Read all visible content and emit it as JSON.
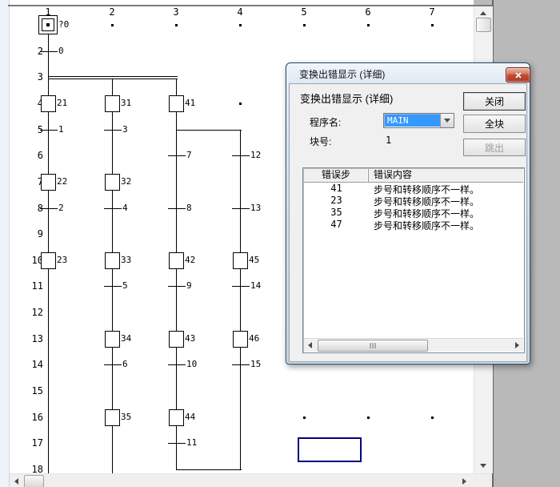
{
  "colors": {
    "cursor_outline": "#000080",
    "combo_selection": "#3399ff",
    "close_button_red": "#c0452f",
    "app_background": "#b9b9b9"
  },
  "editor": {
    "column_headers": [
      "1",
      "2",
      "3",
      "4",
      "5",
      "6",
      "7"
    ],
    "row_headers": [
      "1",
      "2",
      "3",
      "4",
      "5",
      "6",
      "7",
      "8",
      "9",
      "10",
      "11",
      "12",
      "13",
      "14",
      "15",
      "16",
      "17",
      "18"
    ],
    "initial_step": {
      "label": "?0",
      "col": 1,
      "row": 1
    },
    "steps": [
      {
        "label": "21",
        "col": 1,
        "row": 4
      },
      {
        "label": "31",
        "col": 2,
        "row": 4
      },
      {
        "label": "41",
        "col": 3,
        "row": 4
      },
      {
        "label": "22",
        "col": 1,
        "row": 7
      },
      {
        "label": "32",
        "col": 2,
        "row": 7
      },
      {
        "label": "23",
        "col": 1,
        "row": 10
      },
      {
        "label": "33",
        "col": 2,
        "row": 10
      },
      {
        "label": "42",
        "col": 3,
        "row": 10
      },
      {
        "label": "45",
        "col": 4,
        "row": 10
      },
      {
        "label": "34",
        "col": 2,
        "row": 13
      },
      {
        "label": "43",
        "col": 3,
        "row": 13
      },
      {
        "label": "46",
        "col": 4,
        "row": 13
      },
      {
        "label": "35",
        "col": 2,
        "row": 16
      },
      {
        "label": "44",
        "col": 3,
        "row": 16
      }
    ],
    "transitions": [
      {
        "label": "0",
        "col": 1,
        "row": 2
      },
      {
        "label": "1",
        "col": 1,
        "row": 5
      },
      {
        "label": "3",
        "col": 2,
        "row": 5
      },
      {
        "label": "7",
        "col": 3,
        "row": 6
      },
      {
        "label": "12",
        "col": 4,
        "row": 6
      },
      {
        "label": "2",
        "col": 1,
        "row": 8
      },
      {
        "label": "4",
        "col": 2,
        "row": 8
      },
      {
        "label": "8",
        "col": 3,
        "row": 8
      },
      {
        "label": "13",
        "col": 4,
        "row": 8
      },
      {
        "label": "5",
        "col": 2,
        "row": 11
      },
      {
        "label": "9",
        "col": 3,
        "row": 11
      },
      {
        "label": "14",
        "col": 4,
        "row": 11
      },
      {
        "label": "6",
        "col": 2,
        "row": 14
      },
      {
        "label": "10",
        "col": 3,
        "row": 14
      },
      {
        "label": "15",
        "col": 4,
        "row": 14
      },
      {
        "label": "11",
        "col": 3,
        "row": 17
      }
    ],
    "dots": [
      {
        "col": 2,
        "row": 1
      },
      {
        "col": 3,
        "row": 1
      },
      {
        "col": 4,
        "row": 1
      },
      {
        "col": 5,
        "row": 1
      },
      {
        "col": 6,
        "row": 1
      },
      {
        "col": 7,
        "row": 1
      },
      {
        "col": 4,
        "row": 4
      },
      {
        "col": 5,
        "row": 16
      },
      {
        "col": 6,
        "row": 16
      },
      {
        "col": 7,
        "row": 16
      }
    ]
  },
  "dialog": {
    "title": "变换出错显示 (详细)",
    "heading": "变换出错显示 (详细)",
    "program_label": "程序名:",
    "program_value": "MAIN",
    "block_label": "块号:",
    "block_value": "1",
    "buttons": {
      "close": "关闭",
      "all_blocks": "全块",
      "jump": "跳出"
    },
    "table": {
      "headers": [
        "错误步",
        "错误内容"
      ],
      "rows": [
        {
          "step": "41",
          "message": "步号和转移顺序不一样。"
        },
        {
          "step": "23",
          "message": "步号和转移顺序不一样。"
        },
        {
          "step": "35",
          "message": "步号和转移顺序不一样。"
        },
        {
          "step": "47",
          "message": "步号和转移顺序不一样。"
        }
      ]
    }
  }
}
